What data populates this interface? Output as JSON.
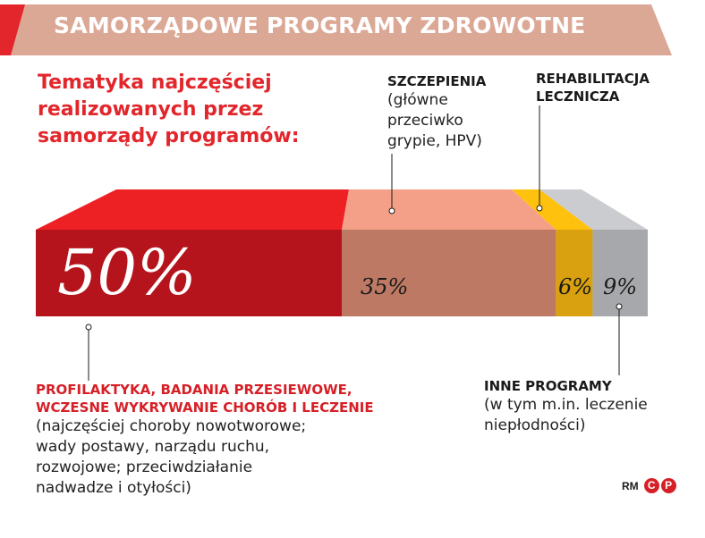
{
  "header": {
    "title": "SAMORZĄDOWE PROGRAMY ZDROWOTNE",
    "subtitle": "Tematyka najczęściej realizowanych przez samorządy programów:"
  },
  "colors": {
    "banner": "#dca896",
    "red_face": "#b5141c",
    "red_top": "#ed2024",
    "salmon_face": "#bd7963",
    "salmon_top": "#f4a088",
    "yellow_face": "#d9a10f",
    "yellow_top": "#fec10e",
    "gray_face": "#a7a8ab",
    "gray_top": "#cbcccf"
  },
  "chart_data": {
    "type": "bar",
    "stacked": true,
    "categories": [
      "PROFILAKTYKA, BADANIA PRZESIEWOWE, WCZESNE WYKRYWANIE CHORÓB I LECZENIE",
      "SZCZEPIENIA",
      "REHABILITACJA LECZNICZA",
      "INNE PROGRAMY"
    ],
    "values": [
      50,
      35,
      6,
      9
    ],
    "value_labels": [
      "50%",
      "35%",
      "6%",
      "9%"
    ]
  },
  "labels": {
    "profilaktyka": {
      "title_line1": "PROFILAKTYKA, BADANIA PRZESIEWOWE,",
      "title_line2": "WCZESNE WYKRYWANIE CHORÓB I LECZENIE",
      "body_line1": "(najczęściej choroby nowotworowe;",
      "body_line2": "wady postawy, narządu ruchu,",
      "body_line3": "rozwojowe; przeciwdziałanie",
      "body_line4": "nadwadze i otyłości)"
    },
    "szczepienia": {
      "title": "SZCZEPIENIA",
      "body_line1": "(główne",
      "body_line2": "przeciwko",
      "body_line3": "grypie, HPV)"
    },
    "rehabilitacja": {
      "title_line1": "REHABILITACJA",
      "title_line2": "LECZNICZA"
    },
    "inne": {
      "title": "INNE PROGRAMY",
      "body_line1": "(w tym m.in. leczenie",
      "body_line2": "niepłodności)"
    }
  },
  "credit": {
    "text": "RM",
    "c": "C",
    "p": "P"
  }
}
